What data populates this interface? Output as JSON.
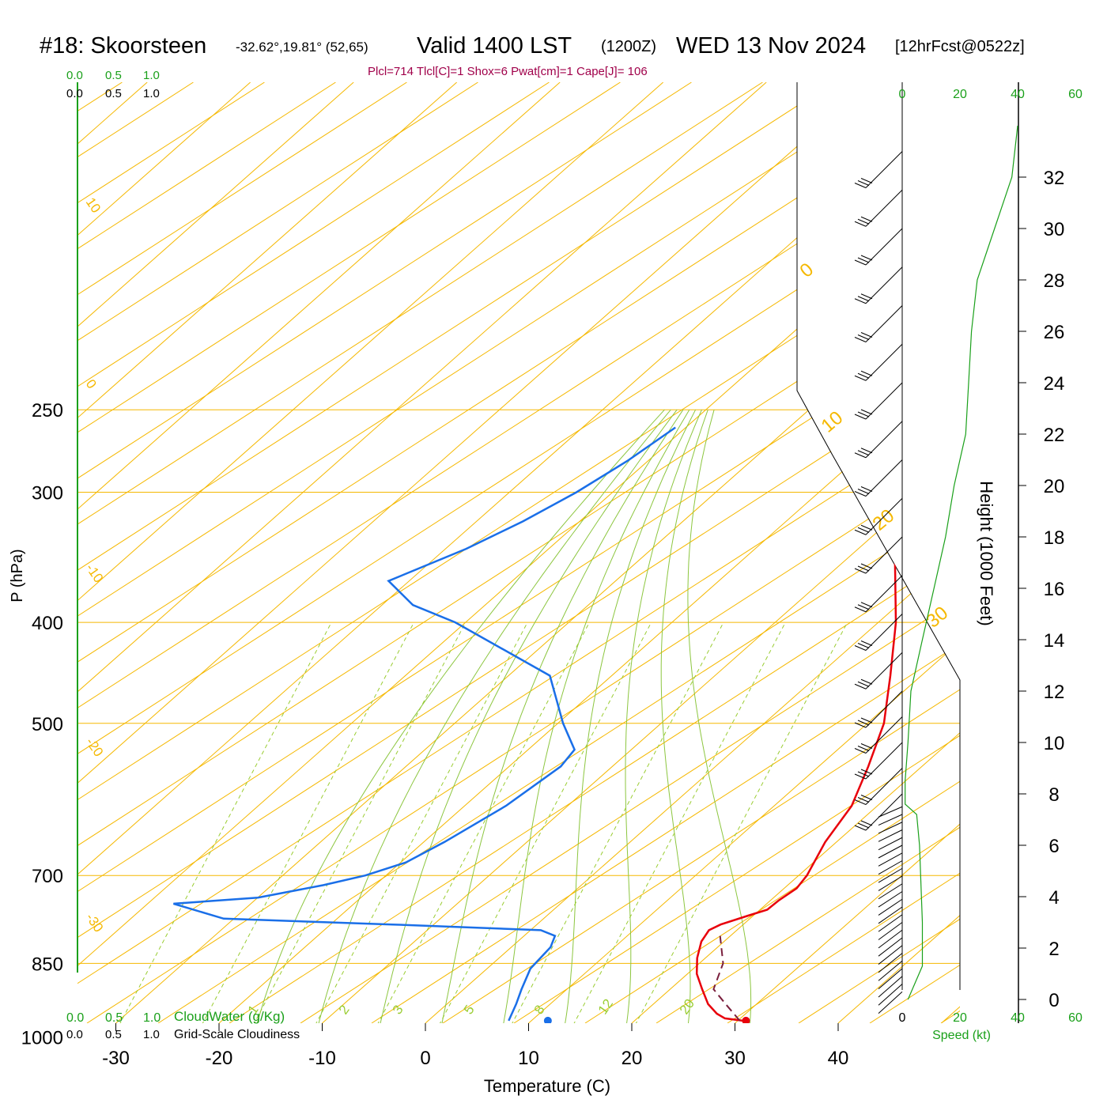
{
  "header": {
    "station": "#18: Skoorsteen",
    "location": "-32.62°,19.81° (52,65)",
    "valid": "Valid 1400 LST",
    "utc": "(1200Z)",
    "date": "WED 13 Nov 2024",
    "forecast": "[12hrFcst@0522z]",
    "params": "Plcl=714 Tlcl[C]=1 Shox=6 Pwat[cm]=1 Cape[J]= 106"
  },
  "colors": {
    "isotherm": "#f5b800",
    "isobar": "#f5b800",
    "mixing_ratio": "#9acd32",
    "moist_adiabat": "#8cc63f",
    "temperature": "#e8000b",
    "dewpoint": "#1a6fe8",
    "parcel": "#7a1f3d",
    "cloud_axis": "#1aa01a",
    "wind_speed": "#1aa01a"
  },
  "chart_data": {
    "type": "line",
    "xlabel": "Temperature (C)",
    "ylabel": "P (hPa)",
    "right_axis_label": "Height (1000 Feet)",
    "x_ticks": [
      -30,
      -20,
      -10,
      0,
      10,
      20,
      30,
      40
    ],
    "pressure_ticks": [
      250,
      300,
      400,
      500,
      700,
      850,
      1000
    ],
    "height_ticks": [
      0,
      2,
      4,
      6,
      8,
      10,
      12,
      14,
      16,
      18,
      20,
      22,
      24,
      26,
      28,
      30,
      32
    ],
    "mixing_ratio_labels": [
      "1",
      "2",
      "3",
      "5",
      "8",
      "12",
      "20"
    ],
    "isotherm_labels_left": [
      "10",
      "0",
      "-10",
      "-20",
      "-30"
    ],
    "isotherm_labels_right": [
      "0",
      "10",
      "20",
      "30"
    ],
    "cloud_scale_top": [
      "0.0",
      "0.5",
      "1.0"
    ],
    "cloud_scale_labels": [
      "0.0",
      "0.5",
      "1.0"
    ],
    "cloudwater_label": "CloudWater (g/Kg)",
    "cloudiness_label": "Grid-Scale Cloudiness",
    "speed_ticks": [
      "0",
      "20",
      "40",
      "60"
    ],
    "speed_label": "Speed (kt)",
    "series": [
      {
        "name": "Temperature",
        "points": [
          {
            "p": 965,
            "t": 30.5
          },
          {
            "p": 960,
            "t": 28.5
          },
          {
            "p": 950,
            "t": 27.2
          },
          {
            "p": 930,
            "t": 25.3
          },
          {
            "p": 900,
            "t": 23.1
          },
          {
            "p": 870,
            "t": 20.9
          },
          {
            "p": 840,
            "t": 19.2
          },
          {
            "p": 810,
            "t": 17.8
          },
          {
            "p": 790,
            "t": 17.3
          },
          {
            "p": 780,
            "t": 17.8
          },
          {
            "p": 765,
            "t": 19.5
          },
          {
            "p": 755,
            "t": 20.7
          },
          {
            "p": 740,
            "t": 20.8
          },
          {
            "p": 720,
            "t": 21.2
          },
          {
            "p": 700,
            "t": 20.8
          },
          {
            "p": 650,
            "t": 18.9
          },
          {
            "p": 600,
            "t": 17.5
          },
          {
            "p": 550,
            "t": 14.8
          },
          {
            "p": 500,
            "t": 11.6
          },
          {
            "p": 450,
            "t": 7.0
          },
          {
            "p": 400,
            "t": 1.7
          },
          {
            "p": 350,
            "t": -5.0
          },
          {
            "p": 300,
            "t": -13.2
          },
          {
            "p": 280,
            "t": -17.2
          },
          {
            "p": 260,
            "t": -21.0
          }
        ],
        "surface": {
          "p": 965,
          "t": 30.8
        }
      },
      {
        "name": "Dewpoint",
        "points": [
          {
            "p": 965,
            "t": 7.8
          },
          {
            "p": 930,
            "t": 6.7
          },
          {
            "p": 900,
            "t": 5.6
          },
          {
            "p": 860,
            "t": 4.2
          },
          {
            "p": 820,
            "t": 3.8
          },
          {
            "p": 800,
            "t": 3.0
          },
          {
            "p": 790,
            "t": 1.0
          },
          {
            "p": 780,
            "t": -14.0
          },
          {
            "p": 770,
            "t": -31.0
          },
          {
            "p": 745,
            "t": -37.5
          },
          {
            "p": 735,
            "t": -30.0
          },
          {
            "p": 715,
            "t": -25.0
          },
          {
            "p": 700,
            "t": -22.0
          },
          {
            "p": 680,
            "t": -19.5
          },
          {
            "p": 650,
            "t": -18.0
          },
          {
            "p": 600,
            "t": -16.0
          },
          {
            "p": 550,
            "t": -15.0
          },
          {
            "p": 530,
            "t": -15.5
          },
          {
            "p": 500,
            "t": -19.5
          },
          {
            "p": 450,
            "t": -26.0
          },
          {
            "p": 400,
            "t": -41.0
          },
          {
            "p": 385,
            "t": -47.0
          },
          {
            "p": 365,
            "t": -52.0
          },
          {
            "p": 340,
            "t": -48.0
          },
          {
            "p": 320,
            "t": -45.5
          },
          {
            "p": 300,
            "t": -43.5
          },
          {
            "p": 280,
            "t": -42.0
          },
          {
            "p": 260,
            "t": -41.0
          }
        ],
        "surface": {
          "p": 965,
          "t": 11.6
        }
      },
      {
        "name": "Parcel",
        "points": [
          {
            "p": 965,
            "t": 30.2
          },
          {
            "p": 930,
            "t": 27.0
          },
          {
            "p": 900,
            "t": 24.2
          },
          {
            "p": 850,
            "t": 22.3
          },
          {
            "p": 800,
            "t": 19.0
          }
        ]
      }
    ],
    "wind_barbs_height_kft": [
      0.3,
      0.6,
      0.9,
      1.2,
      1.5,
      1.8,
      2.1,
      2.4,
      2.7,
      3.0,
      3.3,
      3.6,
      3.9,
      4.2,
      4.5,
      4.8,
      5.1,
      5.4,
      5.7,
      6.0,
      6.3,
      6.6,
      6.9,
      7.2,
      7.5,
      8.0,
      9.0,
      10.0,
      11.0,
      12.0,
      13.5,
      15.0,
      16.5,
      18.0,
      19.5,
      21.0,
      22.5,
      24.0,
      25.5,
      27.0,
      28.5,
      30.0,
      31.5,
      33.0
    ],
    "wind_speed_profile_kt": [
      {
        "h": 0.0,
        "v": 2
      },
      {
        "h": 1.3,
        "v": 7
      },
      {
        "h": 3.0,
        "v": 7
      },
      {
        "h": 6.0,
        "v": 6
      },
      {
        "h": 7.2,
        "v": 5
      },
      {
        "h": 7.6,
        "v": 1
      },
      {
        "h": 8.5,
        "v": 1
      },
      {
        "h": 10.0,
        "v": 2
      },
      {
        "h": 12.0,
        "v": 3
      },
      {
        "h": 14.0,
        "v": 7
      },
      {
        "h": 16.0,
        "v": 11
      },
      {
        "h": 18.0,
        "v": 15
      },
      {
        "h": 20.0,
        "v": 18
      },
      {
        "h": 22.0,
        "v": 22
      },
      {
        "h": 24.0,
        "v": 23
      },
      {
        "h": 26.0,
        "v": 24
      },
      {
        "h": 28.0,
        "v": 26
      },
      {
        "h": 30.0,
        "v": 32
      },
      {
        "h": 32.0,
        "v": 38
      },
      {
        "h": 34.0,
        "v": 40
      }
    ]
  }
}
